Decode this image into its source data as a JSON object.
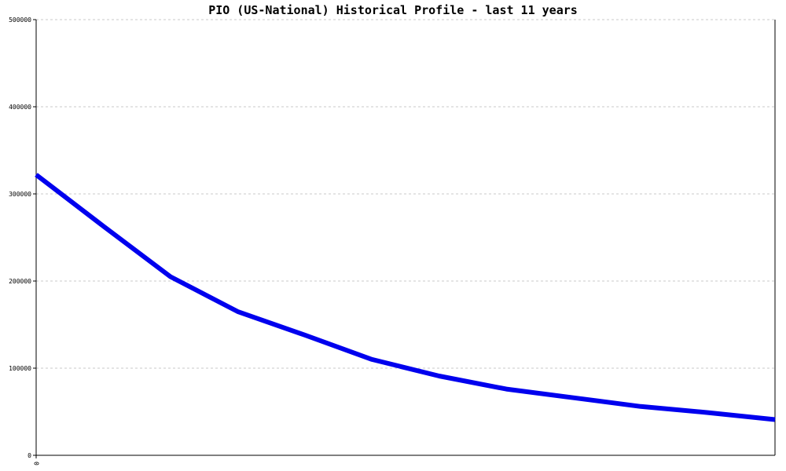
{
  "chart_data": {
    "type": "line",
    "title": "PIO (US-National) Historical Profile - last 11 years",
    "xlabel": "",
    "ylabel": "",
    "x": [
      0,
      1,
      2,
      3,
      4,
      5,
      6,
      7,
      8,
      9,
      10,
      11
    ],
    "x_tick_labels": [
      "0"
    ],
    "ylim": [
      0,
      500000
    ],
    "y_ticks": [
      0,
      100000,
      200000,
      300000,
      400000,
      500000
    ],
    "y_tick_labels": [
      "0",
      "100000",
      "200000",
      "300000",
      "400000",
      "500000"
    ],
    "grid": "horizontal",
    "legend": "none",
    "series": [
      {
        "color": "#0000ee",
        "values": [
          322000,
          263000,
          205000,
          165000,
          138000,
          110000,
          91000,
          76000,
          66000,
          56000,
          49000,
          41000
        ]
      }
    ]
  }
}
